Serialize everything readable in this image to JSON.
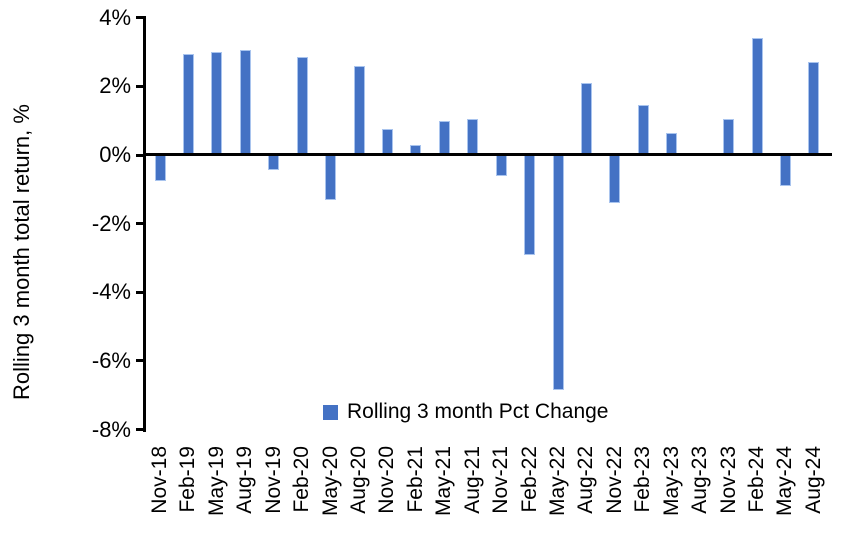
{
  "chart_data": {
    "type": "bar",
    "title": "",
    "ylabel": "Rolling 3 month total return, %",
    "xlabel": "",
    "ylim": [
      -8,
      4
    ],
    "ytick_step": 2,
    "ytick_values": [
      4,
      2,
      0,
      -2,
      -4,
      -6,
      -8
    ],
    "ytick_labels": [
      "4%",
      "2%",
      "0%",
      "-2%",
      "-4%",
      "-6%",
      "-8%"
    ],
    "categories": [
      "Nov-18",
      "Feb-19",
      "May-19",
      "Aug-19",
      "Nov-19",
      "Feb-20",
      "May-20",
      "Aug-20",
      "Nov-20",
      "Feb-21",
      "May-21",
      "Aug-21",
      "Nov-21",
      "Feb-22",
      "May-22",
      "Aug-22",
      "Nov-22",
      "Feb-23",
      "May-23",
      "Aug-23",
      "Nov-23",
      "Feb-24",
      "May-24",
      "Aug-24"
    ],
    "series": [
      {
        "name": "Rolling 3 month Pct Change",
        "values": [
          -0.75,
          2.95,
          3.0,
          3.05,
          -0.45,
          2.85,
          -1.3,
          2.6,
          0.75,
          0.3,
          1.0,
          1.05,
          -0.6,
          -2.9,
          -6.85,
          2.1,
          -1.4,
          1.45,
          0.65,
          0.0,
          1.05,
          3.4,
          -0.9,
          2.7
        ]
      }
    ],
    "legend_position": "bottom-center",
    "grid": false,
    "bar_color": "#4472C4",
    "bar_border_color": "#A9C4EE",
    "axis_color": "#000000"
  }
}
